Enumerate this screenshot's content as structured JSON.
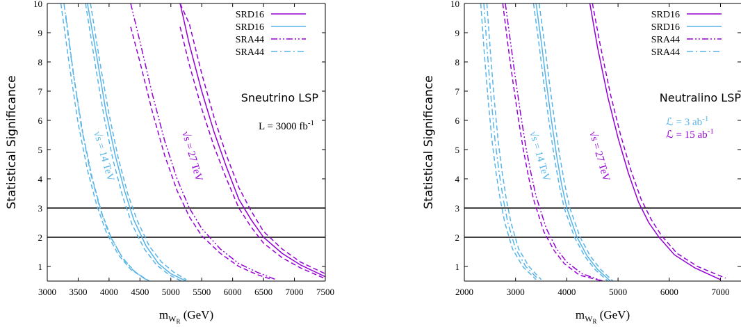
{
  "colors": {
    "purple": "#9400d3",
    "cyan": "#56b4e9",
    "black": "#000000"
  },
  "chart_data": [
    {
      "type": "line",
      "title": "",
      "xlabel_main": "m",
      "xlabel_sub": "W",
      "xlabel_subsub": "R",
      "xlabel_unit": " (GeV)",
      "ylabel": "Statistical Significance",
      "xlim": [
        3000,
        7500
      ],
      "ylim": [
        0.5,
        10
      ],
      "xticks": [
        3000,
        3500,
        4000,
        4500,
        5000,
        5500,
        6000,
        6500,
        7000,
        7500
      ],
      "yticks": [
        1,
        2,
        3,
        4,
        5,
        6,
        7,
        8,
        9,
        10
      ],
      "hlines": [
        2,
        3
      ],
      "annotation": "Sneutrino LSP",
      "lumi_text": "L = 3000 fb",
      "lumi_sup": "-1",
      "energy_labels": [
        {
          "text": "s = 14 TeV",
          "color": "cyan"
        },
        {
          "text": "s = 27 TeV",
          "color": "purple"
        }
      ],
      "legend": [
        {
          "label": "SRD16",
          "color": "purple",
          "style": "solid"
        },
        {
          "label": "SRD16",
          "color": "cyan",
          "style": "solid"
        },
        {
          "label": "SRA44",
          "color": "purple",
          "style": "dashdotdot"
        },
        {
          "label": "SRA44",
          "color": "cyan",
          "style": "dashdot"
        }
      ],
      "series": [
        {
          "color": "purple",
          "style": "solid",
          "x": [
            5150,
            5300,
            5500,
            5700,
            5900,
            6100,
            6300,
            6500,
            6800,
            7100,
            7500
          ],
          "y": [
            10,
            8.6,
            7.0,
            5.6,
            4.4,
            3.3,
            2.6,
            2.0,
            1.45,
            1.05,
            0.65
          ]
        },
        {
          "color": "purple",
          "style": "dashed",
          "x": [
            5150,
            5300,
            5500,
            5700,
            5900,
            6100,
            6300,
            6500,
            6800,
            7100,
            7500
          ],
          "y": [
            10,
            9.3,
            7.6,
            6.1,
            4.8,
            3.7,
            2.9,
            2.2,
            1.6,
            1.15,
            0.75
          ]
        },
        {
          "color": "purple",
          "style": "dashed",
          "x": [
            5150,
            5300,
            5500,
            5700,
            5900,
            6100,
            6300,
            6500,
            6800,
            7100,
            7500
          ],
          "y": [
            9.2,
            7.9,
            6.4,
            5.1,
            4.0,
            3.0,
            2.35,
            1.8,
            1.3,
            0.95,
            0.58
          ]
        },
        {
          "color": "purple",
          "style": "dashdotdot",
          "x": [
            4350,
            4500,
            4700,
            4900,
            5100,
            5300,
            5500,
            5800,
            6100,
            6400,
            6700
          ],
          "y": [
            10,
            8.7,
            6.9,
            5.3,
            4.0,
            3.0,
            2.3,
            1.6,
            1.1,
            0.8,
            0.55
          ]
        },
        {
          "color": "purple",
          "style": "dashed",
          "x": [
            4350,
            4500,
            4700,
            4900,
            5100,
            5300,
            5500,
            5800,
            6100,
            6400,
            6600
          ],
          "y": [
            9.2,
            8.0,
            6.3,
            4.8,
            3.6,
            2.7,
            2.05,
            1.45,
            1.0,
            0.72,
            0.58
          ]
        },
        {
          "color": "cyan",
          "style": "solid",
          "x": [
            3650,
            3800,
            3950,
            4100,
            4250,
            4400,
            4600,
            4800,
            5000,
            5250
          ],
          "y": [
            10,
            8.2,
            6.3,
            4.8,
            3.6,
            2.6,
            1.7,
            1.1,
            0.75,
            0.5
          ]
        },
        {
          "color": "cyan",
          "style": "dashed",
          "x": [
            3700,
            3850,
            4000,
            4150,
            4300,
            4450,
            4650,
            4850,
            5050,
            5250
          ],
          "y": [
            10,
            8.0,
            6.2,
            4.7,
            3.5,
            2.6,
            1.7,
            1.15,
            0.8,
            0.55
          ]
        },
        {
          "color": "cyan",
          "style": "dashed",
          "x": [
            3620,
            3770,
            3920,
            4070,
            4220,
            4370,
            4570,
            4770,
            4970,
            5170
          ],
          "y": [
            10,
            8.0,
            6.1,
            4.6,
            3.4,
            2.45,
            1.6,
            1.05,
            0.72,
            0.5
          ]
        },
        {
          "color": "cyan",
          "style": "dashdot",
          "x": [
            3270,
            3400,
            3550,
            3700,
            3850,
            4000,
            4200,
            4400,
            4600
          ],
          "y": [
            10,
            7.9,
            5.8,
            4.2,
            3.0,
            2.1,
            1.35,
            0.85,
            0.55
          ]
        },
        {
          "color": "cyan",
          "style": "dashed",
          "x": [
            3220,
            3350,
            3500,
            3650,
            3800,
            3950,
            4150,
            4350,
            4600
          ],
          "y": [
            10,
            8.0,
            5.9,
            4.3,
            3.1,
            2.2,
            1.4,
            0.9,
            0.55
          ]
        },
        {
          "color": "cyan",
          "style": "dashed",
          "x": [
            3300,
            3430,
            3580,
            3730,
            3880,
            4030,
            4230,
            4430,
            4650
          ],
          "y": [
            9.6,
            7.5,
            5.5,
            4.0,
            2.85,
            2.0,
            1.25,
            0.8,
            0.5
          ]
        }
      ]
    },
    {
      "type": "line",
      "title": "",
      "xlabel_main": "m",
      "xlabel_sub": "W",
      "xlabel_subsub": "R",
      "xlabel_unit": " (GeV)",
      "ylabel": "Statistical Significance",
      "xlim": [
        2000,
        7400
      ],
      "ylim": [
        0.5,
        10
      ],
      "xticks": [
        2000,
        3000,
        4000,
        5000,
        6000,
        7000
      ],
      "yticks": [
        1,
        2,
        3,
        4,
        5,
        6,
        7,
        8,
        9,
        10
      ],
      "hlines": [
        2,
        3
      ],
      "annotation": "Neutralino LSP",
      "lumi_lines": [
        {
          "text": "ℒ =  3 ab",
          "sup": "-1",
          "color": "cyan"
        },
        {
          "text": "ℒ = 15 ab",
          "sup": "-1",
          "color": "purple"
        }
      ],
      "energy_labels": [
        {
          "text": "s = 14 TeV",
          "color": "cyan"
        },
        {
          "text": "s = 27 TeV",
          "color": "purple"
        }
      ],
      "legend": [
        {
          "label": "SRD16",
          "color": "purple",
          "style": "solid"
        },
        {
          "label": "SRD16",
          "color": "cyan",
          "style": "solid"
        },
        {
          "label": "SRA44",
          "color": "purple",
          "style": "dashdotdot"
        },
        {
          "label": "SRA44",
          "color": "cyan",
          "style": "dashdot"
        }
      ],
      "series": [
        {
          "color": "purple",
          "style": "solid",
          "x": [
            4450,
            4600,
            4800,
            5000,
            5200,
            5400,
            5600,
            5800,
            6100,
            6500,
            7000
          ],
          "y": [
            10,
            8.5,
            6.8,
            5.4,
            4.2,
            3.2,
            2.5,
            2.0,
            1.4,
            0.95,
            0.55
          ]
        },
        {
          "color": "purple",
          "style": "dashed",
          "x": [
            4500,
            4650,
            4850,
            5050,
            5250,
            5450,
            5650,
            5850,
            6150,
            6550,
            7100
          ],
          "y": [
            10,
            8.6,
            6.9,
            5.5,
            4.3,
            3.3,
            2.6,
            2.05,
            1.45,
            1.0,
            0.6
          ]
        },
        {
          "color": "purple",
          "style": "dashdotdot",
          "x": [
            2800,
            2900,
            3000,
            3100,
            3200,
            3300,
            3400,
            3600,
            3800,
            4000,
            4300,
            4700
          ],
          "y": [
            10,
            8.7,
            7.4,
            6.2,
            5.1,
            4.2,
            3.4,
            2.3,
            1.6,
            1.15,
            0.75,
            0.5
          ]
        },
        {
          "color": "purple",
          "style": "dashed",
          "x": [
            2750,
            2850,
            2950,
            3050,
            3150,
            3250,
            3350,
            3550,
            3750,
            3950,
            4250,
            4700
          ],
          "y": [
            10,
            8.6,
            7.3,
            6.1,
            5.0,
            4.1,
            3.3,
            2.2,
            1.55,
            1.1,
            0.7,
            0.5
          ]
        },
        {
          "color": "cyan",
          "style": "solid",
          "x": [
            3400,
            3500,
            3600,
            3700,
            3800,
            3900,
            4000,
            4200,
            4400,
            4600,
            4850
          ],
          "y": [
            10,
            8.7,
            7.3,
            6.0,
            4.8,
            3.8,
            3.0,
            2.0,
            1.35,
            0.9,
            0.5
          ]
        },
        {
          "color": "cyan",
          "style": "dashed",
          "x": [
            3460,
            3560,
            3660,
            3760,
            3860,
            3960,
            4060,
            4260,
            4460,
            4660,
            4900
          ],
          "y": [
            10,
            8.7,
            7.3,
            6.0,
            4.8,
            3.8,
            3.0,
            2.0,
            1.35,
            0.9,
            0.5
          ]
        },
        {
          "color": "cyan",
          "style": "dashed",
          "x": [
            3350,
            3450,
            3550,
            3650,
            3750,
            3850,
            3950,
            4150,
            4350,
            4550,
            4800
          ],
          "y": [
            10,
            8.7,
            7.3,
            6.0,
            4.8,
            3.8,
            3.0,
            2.0,
            1.35,
            0.9,
            0.5
          ]
        },
        {
          "color": "cyan",
          "style": "dashdot",
          "x": [
            2380,
            2450,
            2520,
            2600,
            2680,
            2760,
            2850,
            3000,
            3200,
            3450
          ],
          "y": [
            10,
            8.3,
            6.8,
            5.3,
            4.2,
            3.3,
            2.5,
            1.6,
            1.0,
            0.55
          ]
        },
        {
          "color": "cyan",
          "style": "dashed",
          "x": [
            2320,
            2390,
            2460,
            2540,
            2620,
            2700,
            2790,
            2940,
            3140,
            3400
          ],
          "y": [
            10,
            8.3,
            6.8,
            5.3,
            4.2,
            3.3,
            2.5,
            1.6,
            1.0,
            0.55
          ]
        },
        {
          "color": "cyan",
          "style": "dashed",
          "x": [
            2440,
            2510,
            2580,
            2660,
            2740,
            2820,
            2910,
            3060,
            3260,
            3500
          ],
          "y": [
            10,
            8.3,
            6.8,
            5.3,
            4.2,
            3.3,
            2.5,
            1.6,
            1.0,
            0.55
          ]
        }
      ]
    }
  ]
}
